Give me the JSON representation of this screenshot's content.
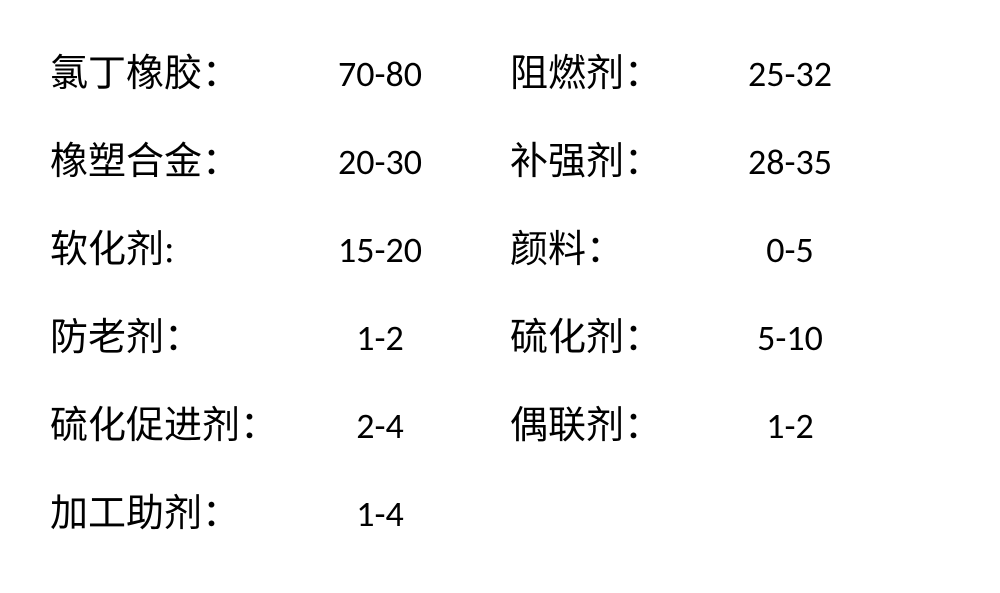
{
  "table": {
    "type": "table",
    "background_color": "#ffffff",
    "text_color": "#000000",
    "label_font": "SimSun",
    "value_font": "Calibri",
    "label_fontsize": 38,
    "value_fontsize": 36,
    "rows": [
      {
        "left_label": "氯丁橡胶：",
        "left_value": "70-80",
        "right_label": "阻燃剂：",
        "right_value": "25-32"
      },
      {
        "left_label": "橡塑合金：",
        "left_value": "20-30",
        "right_label": "补强剂：",
        "right_value": "28-35"
      },
      {
        "left_label": "软化剂:",
        "left_value": "15-20",
        "right_label": "颜料：",
        "right_value": "0-5"
      },
      {
        "left_label": "防老剂：",
        "left_value": "1-2",
        "right_label": "硫化剂：",
        "right_value": "5-10"
      },
      {
        "left_label": "硫化促进剂：",
        "left_value": "2-4",
        "right_label": "偶联剂：",
        "right_value": "1-2"
      },
      {
        "left_label": "加工助剂：",
        "left_value": "1-4",
        "right_label": "",
        "right_value": ""
      }
    ]
  }
}
